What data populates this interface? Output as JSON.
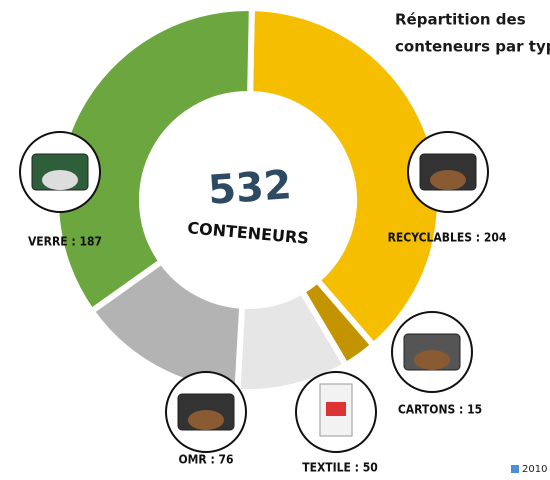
{
  "chart_data": {
    "type": "donut",
    "title": [
      "Répartition des",
      "conteneurs par type"
    ],
    "total": 532,
    "center_label": "CONTENEURS",
    "labels": [
      "RECYCLABLES : 204",
      "CARTONS : 15",
      "TEXTILE : 50",
      "OMR : 76",
      "VERRE : 187"
    ],
    "values": [
      204,
      15,
      50,
      76,
      187
    ],
    "colors": [
      "#f5be00",
      "#c49400",
      "#e6e6e6",
      "#b3b3b3",
      "#6ca63f"
    ],
    "series_name": "2010",
    "legend_color": "#4a8fd8"
  }
}
